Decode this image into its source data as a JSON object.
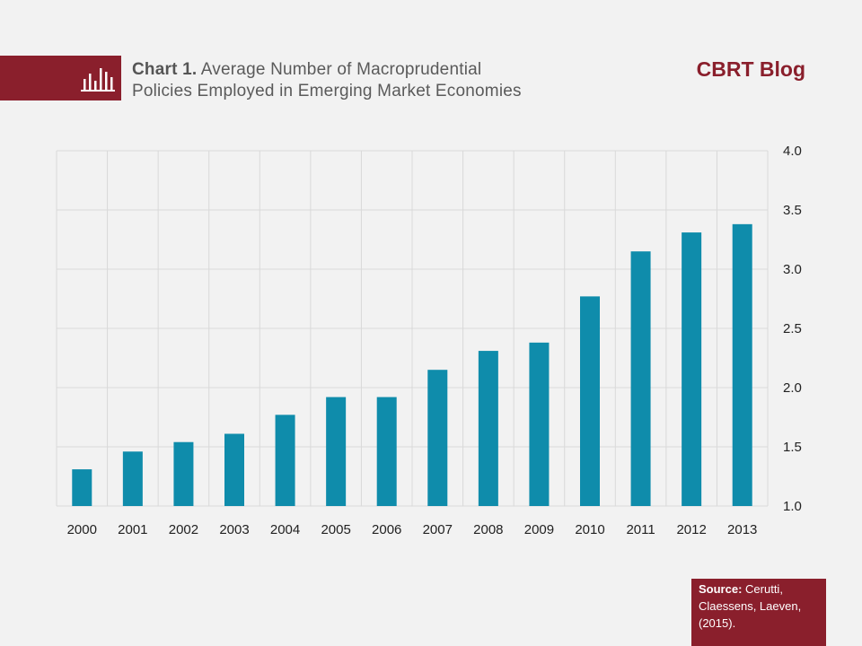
{
  "header": {
    "chart_label": "Chart 1.",
    "title_line1": "Average Number of Macroprudential",
    "title_line2": "Policies Employed in Emerging Market Economies",
    "brand": "CBRT Blog",
    "icon": "bar-chart-icon"
  },
  "source": {
    "label": "Source:",
    "text": "Cerutti, Claessens, Laeven, (2015)."
  },
  "colors": {
    "accent": "#8a1f2c",
    "bar": "#0f8cab",
    "grid": "#d9d9d9"
  },
  "chart_data": {
    "type": "bar",
    "categories": [
      "2000",
      "2001",
      "2002",
      "2003",
      "2004",
      "2005",
      "2006",
      "2007",
      "2008",
      "2009",
      "2010",
      "2011",
      "2012",
      "2013"
    ],
    "values": [
      1.31,
      1.46,
      1.54,
      1.61,
      1.77,
      1.92,
      1.92,
      2.15,
      2.31,
      2.38,
      2.77,
      3.15,
      3.31,
      3.38
    ],
    "ylim": [
      1.0,
      4.0
    ],
    "yticks": [
      "1.0",
      "1.5",
      "2.0",
      "2.5",
      "3.0",
      "3.5",
      "4.0"
    ],
    "ytick_values": [
      1.0,
      1.5,
      2.0,
      2.5,
      3.0,
      3.5,
      4.0
    ],
    "y_axis_position": "right",
    "grid": true
  }
}
